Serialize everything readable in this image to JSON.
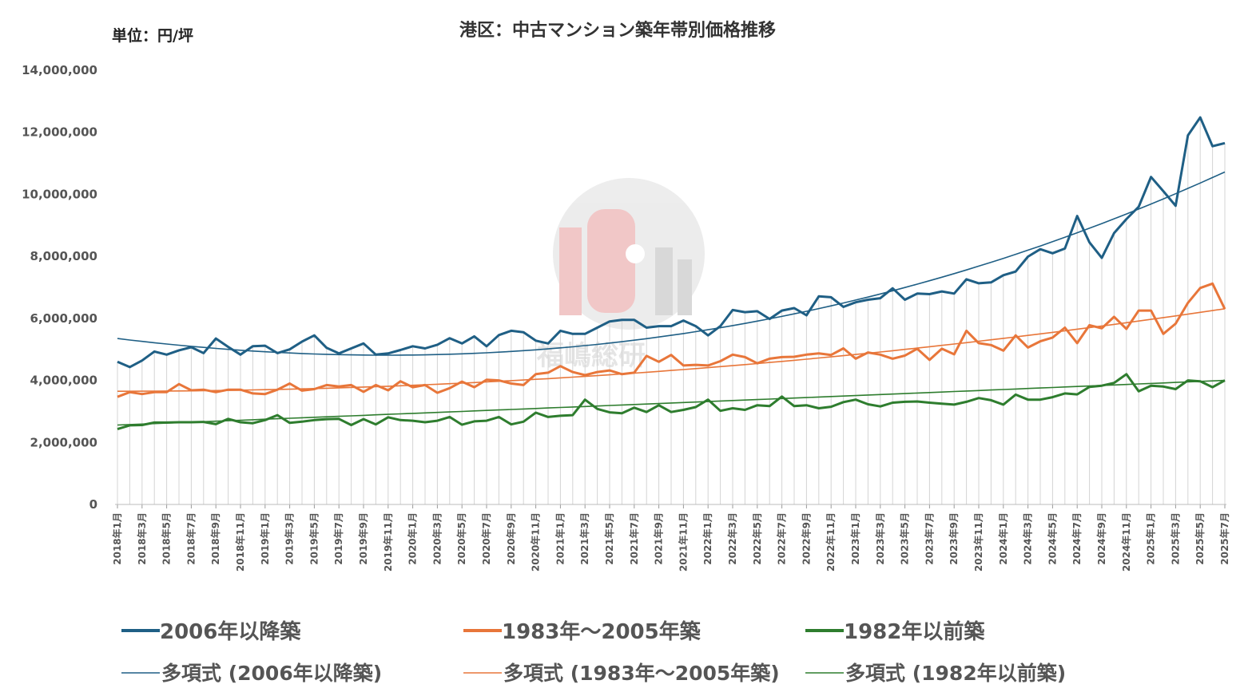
{
  "chart_data": {
    "type": "line",
    "title": "港区：中古マンション築年帯別価格推移",
    "unit_label": "単位：円/坪",
    "watermark": "福嶋総研",
    "ylim": [
      0,
      14000000
    ],
    "yticks": [
      "0",
      "2,000,000",
      "4,000,000",
      "6,000,000",
      "8,000,000",
      "10,000,000",
      "12,000,000",
      "14,000,000"
    ],
    "ytick_values": [
      0,
      2000000,
      4000000,
      6000000,
      8000000,
      10000000,
      12000000,
      14000000
    ],
    "x_tick_labels": [
      "2018年1月",
      "2018年3月",
      "2018年5月",
      "2018年7月",
      "2018年9月",
      "2018年11月",
      "2019年1月",
      "2019年3月",
      "2019年5月",
      "2019年7月",
      "2019年9月",
      "2019年11月",
      "2020年1月",
      "2020年3月",
      "2020年5月",
      "2020年7月",
      "2020年9月",
      "2020年11月",
      "2021年1月",
      "2021年3月",
      "2021年5月",
      "2021年7月",
      "2021年9月",
      "2021年11月",
      "2022年1月",
      "2022年3月",
      "2022年5月",
      "2022年7月",
      "2022年9月",
      "2022年11月",
      "2023年1月",
      "2023年3月",
      "2023年5月",
      "2023年7月",
      "2023年9月",
      "2023年11月",
      "2024年1月",
      "2024年3月",
      "2024年5月",
      "2024年7月",
      "2024年9月",
      "2024年11月",
      "2025年1月",
      "2025年3月",
      "2025年5月",
      "2025年7月"
    ],
    "x_start": "2018年1月",
    "x_end": "2025年7月",
    "grid": "vertical",
    "legend_position": "bottom",
    "series": [
      {
        "name": "2006年以降築",
        "color": "#1f5f85",
        "values": [
          4600000,
          4430000,
          4640000,
          4930000,
          4830000,
          4970000,
          5070000,
          4880000,
          5350000,
          5080000,
          4830000,
          5100000,
          5120000,
          4880000,
          5000000,
          5250000,
          5450000,
          5050000,
          4870000,
          5030000,
          5190000,
          4830000,
          4870000,
          4980000,
          5100000,
          5030000,
          5150000,
          5360000,
          5190000,
          5420000,
          5100000,
          5460000,
          5600000,
          5550000,
          5280000,
          5190000,
          5600000,
          5500000,
          5500000,
          5700000,
          5900000,
          5950000,
          5950000,
          5700000,
          5750000,
          5750000,
          5930000,
          5750000,
          5450000,
          5750000,
          6270000,
          6200000,
          6230000,
          5980000,
          6250000,
          6330000,
          6100000,
          6710000,
          6680000,
          6370000,
          6520000,
          6600000,
          6650000,
          6970000,
          6600000,
          6800000,
          6780000,
          6870000,
          6800000,
          7260000,
          7130000,
          7160000,
          7390000,
          7510000,
          7990000,
          8230000,
          8100000,
          8250000,
          9300000,
          8450000,
          7950000,
          8750000,
          9200000,
          9600000,
          10560000,
          10100000,
          9630000,
          11900000,
          12480000,
          11550000,
          11650000
        ]
      },
      {
        "name": "1983年～2005年築",
        "color": "#e8763a",
        "values": [
          3470000,
          3620000,
          3560000,
          3620000,
          3620000,
          3880000,
          3680000,
          3700000,
          3620000,
          3700000,
          3700000,
          3580000,
          3560000,
          3700000,
          3900000,
          3670000,
          3720000,
          3850000,
          3800000,
          3850000,
          3630000,
          3850000,
          3680000,
          3970000,
          3780000,
          3850000,
          3600000,
          3750000,
          3960000,
          3780000,
          4020000,
          4000000,
          3900000,
          3850000,
          4200000,
          4250000,
          4460000,
          4270000,
          4170000,
          4270000,
          4320000,
          4200000,
          4250000,
          4790000,
          4600000,
          4820000,
          4480000,
          4500000,
          4480000,
          4620000,
          4830000,
          4750000,
          4550000,
          4700000,
          4750000,
          4760000,
          4830000,
          4870000,
          4820000,
          5030000,
          4700000,
          4900000,
          4830000,
          4700000,
          4800000,
          5020000,
          4660000,
          5020000,
          4840000,
          5600000,
          5200000,
          5140000,
          4960000,
          5450000,
          5060000,
          5260000,
          5380000,
          5700000,
          5200000,
          5780000,
          5680000,
          6050000,
          5660000,
          6250000,
          6250000,
          5500000,
          5830000,
          6500000,
          6980000,
          7120000,
          6300000
        ]
      },
      {
        "name": "1982年以前築",
        "color": "#2e7d2e",
        "values": [
          2430000,
          2550000,
          2560000,
          2640000,
          2640000,
          2650000,
          2650000,
          2660000,
          2590000,
          2760000,
          2650000,
          2620000,
          2720000,
          2880000,
          2630000,
          2670000,
          2720000,
          2750000,
          2760000,
          2560000,
          2750000,
          2580000,
          2810000,
          2720000,
          2700000,
          2650000,
          2700000,
          2820000,
          2570000,
          2680000,
          2700000,
          2820000,
          2580000,
          2670000,
          2960000,
          2820000,
          2860000,
          2880000,
          3380000,
          3080000,
          2970000,
          2940000,
          3120000,
          2980000,
          3200000,
          2980000,
          3050000,
          3140000,
          3380000,
          3020000,
          3100000,
          3050000,
          3200000,
          3170000,
          3480000,
          3170000,
          3200000,
          3100000,
          3150000,
          3300000,
          3380000,
          3230000,
          3160000,
          3280000,
          3310000,
          3320000,
          3280000,
          3250000,
          3220000,
          3310000,
          3430000,
          3360000,
          3220000,
          3540000,
          3380000,
          3380000,
          3460000,
          3580000,
          3550000,
          3790000,
          3830000,
          3920000,
          4200000,
          3650000,
          3830000,
          3800000,
          3720000,
          4000000,
          3970000,
          3780000,
          4000000
        ]
      },
      {
        "name": "多項式 (2006年以降築)",
        "color": "#1f5f85",
        "type": "trend",
        "values": [
          5350000,
          4890000,
          6590000,
          10720000
        ]
      },
      {
        "name": "多項式 (1983年～2005年築)",
        "color": "#e8763a",
        "type": "trend",
        "values": [
          3650000,
          4320000,
          6310000
        ]
      },
      {
        "name": "多項式 (1982年以前築)",
        "color": "#2e7d2e",
        "type": "trend",
        "values": [
          2560000,
          3270000,
          4000000
        ]
      }
    ]
  }
}
